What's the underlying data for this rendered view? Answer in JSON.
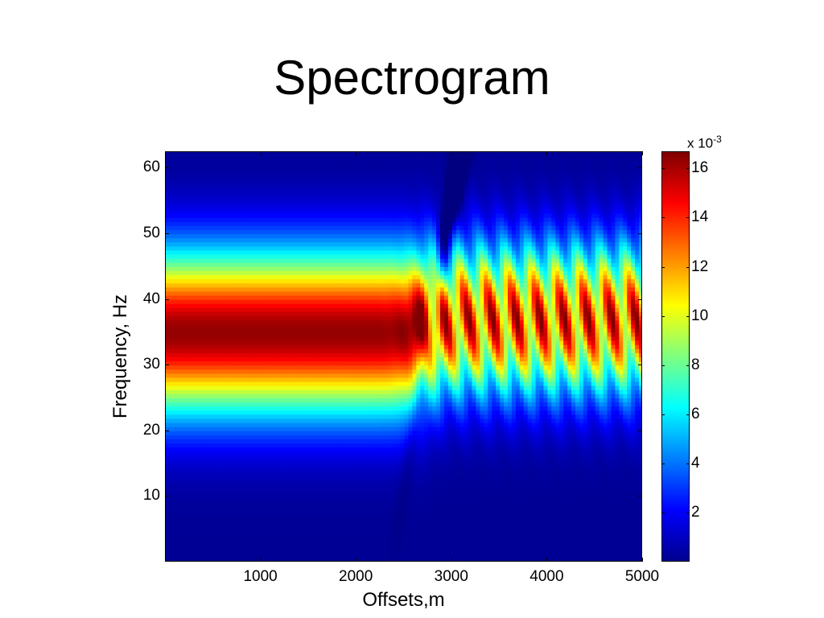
{
  "title": "Spectrogram",
  "chart_data": {
    "type": "heatmap",
    "title": "Spectrogram",
    "xlabel": "Offsets,m",
    "ylabel": "Frequency, Hz",
    "xlim": [
      0,
      5000
    ],
    "ylim": [
      0,
      62.5
    ],
    "x_ticks": [
      1000,
      2000,
      3000,
      4000,
      5000
    ],
    "y_ticks": [
      10,
      20,
      30,
      40,
      50,
      60
    ],
    "colormap": "jet",
    "colorbar": {
      "multiplier": "x 10",
      "exponent": "-3",
      "range": [
        0,
        0.0167
      ],
      "ticks": [
        2,
        4,
        6,
        8,
        10,
        12,
        14,
        16
      ]
    },
    "description": "Broad band centered near 35 Hz (peak ~0.016) for offsets below ~2500 m; transition near 2700 m; beyond, oscillating diagonal red stripes between ~25 and 50 Hz",
    "regions": {
      "band_center_hz": 35,
      "transition_offset_m": 2700,
      "stripe_spacing_m": 250
    }
  }
}
